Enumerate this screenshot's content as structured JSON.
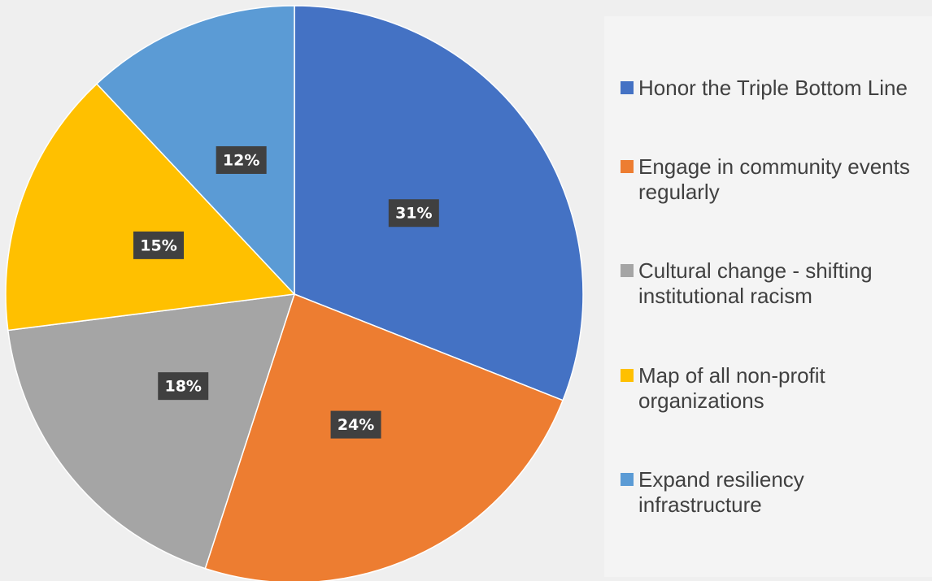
{
  "chart_data": {
    "type": "pie",
    "categories": [
      "Honor the Triple Bottom Line",
      "Engage in community events regularly",
      "Cultural change - shifting institutional racism",
      "Map of all non-profit organizations",
      "Expand resiliency infrastructure"
    ],
    "values": [
      31,
      24,
      18,
      15,
      12
    ],
    "value_labels": [
      "31%",
      "24%",
      "18%",
      "15%",
      "12%"
    ],
    "colors": [
      "#4472c4",
      "#ed7d31",
      "#a5a5a5",
      "#ffc000",
      "#5b9bd5"
    ],
    "legend": "right"
  }
}
